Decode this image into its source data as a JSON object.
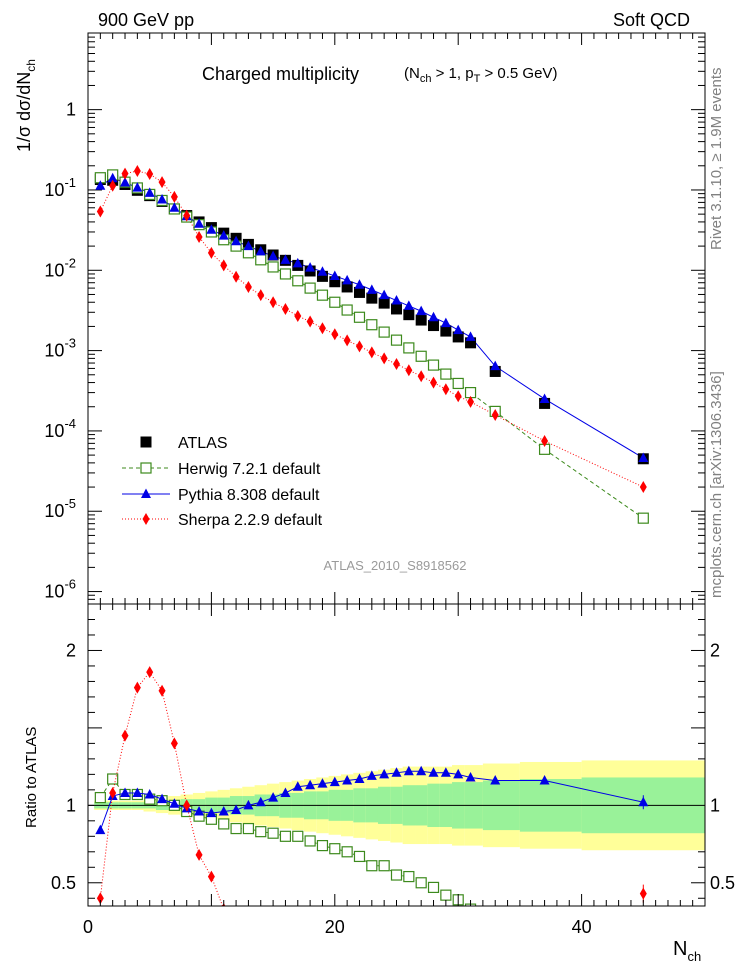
{
  "header": {
    "left": "900 GeV pp",
    "right": "Soft QCD"
  },
  "side_texts": {
    "upper": "Rivet 3.1.10, ≥ 1.9M events",
    "lower": "mcplots.cern.ch [arXiv:1306.3436]"
  },
  "watermark": "ATLAS_2010_S8918562",
  "colors": {
    "atlas": "#000000",
    "herwig": "#3d8a1d",
    "pythia": "#0000e6",
    "sherpa": "#ff0000",
    "band_inner": "#99f299",
    "band_outer": "#ffff99"
  },
  "chart_data": [
    {
      "type": "scatter",
      "title": "Charged multiplicity",
      "title_cuts": {
        "a": "(N",
        "a_sub": "ch",
        "b": " > 1, p",
        "b_sub": "T",
        "c": " > 0.5 GeV)"
      },
      "xlabel": "N",
      "xlabel_sub": "ch",
      "ylabel": "1/σ dσ/dN",
      "ylabel_sub": "ch",
      "log_y": true,
      "xlim": [
        0,
        50
      ],
      "ylim": [
        7e-07,
        9
      ],
      "xticks": [
        "0",
        "20",
        "40"
      ],
      "yticks": [
        {
          "base": "10",
          "exp": "-6"
        },
        {
          "base": "10",
          "exp": "-5"
        },
        {
          "base": "10",
          "exp": "-4"
        },
        {
          "base": "10",
          "exp": "-3"
        },
        {
          "base": "10",
          "exp": "-2"
        },
        {
          "base": "10",
          "exp": "-1"
        },
        {
          "base": "1",
          "exp": ""
        }
      ],
      "legend_position": "lower-left",
      "series": [
        {
          "name": "ATLAS",
          "marker": "square",
          "color": "#000000",
          "x": [
            1,
            2,
            3,
            4,
            5,
            6,
            7,
            8,
            9,
            10,
            11,
            12,
            13,
            14,
            15,
            16,
            17,
            18,
            19,
            20,
            21,
            22,
            23,
            24,
            25,
            26,
            27,
            28,
            29,
            30,
            31,
            33,
            37,
            45
          ],
          "y": [
            0.135,
            0.132,
            0.117,
            0.099,
            0.085,
            0.072,
            0.058,
            0.048,
            0.04,
            0.034,
            0.029,
            0.025,
            0.021,
            0.018,
            0.0155,
            0.0133,
            0.0115,
            0.0098,
            0.0084,
            0.0072,
            0.0062,
            0.0053,
            0.0045,
            0.0039,
            0.0033,
            0.0028,
            0.0024,
            0.00205,
            0.00175,
            0.00148,
            0.00125,
            0.00055,
            0.00022,
            4.5e-05
          ]
        },
        {
          "name": "Herwig 7.2.1 default",
          "marker": "open-square",
          "color": "#3d8a1d",
          "dash": "4,3",
          "x": [
            1,
            2,
            3,
            4,
            5,
            6,
            7,
            8,
            9,
            10,
            11,
            12,
            13,
            14,
            15,
            16,
            17,
            18,
            19,
            20,
            21,
            22,
            23,
            24,
            25,
            26,
            27,
            28,
            29,
            30,
            31,
            33,
            37,
            45
          ],
          "y": [
            0.142,
            0.154,
            0.125,
            0.106,
            0.088,
            0.074,
            0.058,
            0.046,
            0.037,
            0.03,
            0.024,
            0.02,
            0.0165,
            0.0135,
            0.011,
            0.009,
            0.0074,
            0.006,
            0.0049,
            0.004,
            0.0032,
            0.0026,
            0.0021,
            0.0017,
            0.00135,
            0.00108,
            0.00085,
            0.00066,
            0.00051,
            0.00039,
            0.0003,
            0.000175,
            5.9e-05,
            8.2e-06
          ]
        },
        {
          "name": "Pythia 8.308 default",
          "marker": "triangle",
          "color": "#0000e6",
          "dash": "",
          "x": [
            1,
            2,
            3,
            4,
            5,
            6,
            7,
            8,
            9,
            10,
            11,
            12,
            13,
            14,
            15,
            16,
            17,
            18,
            19,
            20,
            21,
            22,
            23,
            24,
            25,
            26,
            27,
            28,
            29,
            30,
            31,
            33,
            37,
            45
          ],
          "y": [
            0.113,
            0.14,
            0.124,
            0.107,
            0.092,
            0.076,
            0.06,
            0.047,
            0.038,
            0.032,
            0.027,
            0.023,
            0.02,
            0.0172,
            0.015,
            0.0135,
            0.0122,
            0.0108,
            0.0096,
            0.0085,
            0.0075,
            0.0066,
            0.0057,
            0.0049,
            0.0042,
            0.0036,
            0.0031,
            0.0026,
            0.0022,
            0.0018,
            0.00148,
            0.00064,
            0.00025,
            4.6e-05
          ]
        },
        {
          "name": "Sherpa 2.2.9 default",
          "marker": "diamond",
          "color": "#ff0000",
          "dash": "1,2",
          "x": [
            1,
            2,
            3,
            4,
            5,
            6,
            7,
            8,
            9,
            10,
            11,
            12,
            13,
            14,
            15,
            16,
            17,
            18,
            19,
            20,
            21,
            22,
            23,
            24,
            25,
            26,
            27,
            28,
            29,
            30,
            31,
            33,
            37,
            45
          ],
          "y": [
            0.054,
            0.113,
            0.16,
            0.172,
            0.158,
            0.125,
            0.082,
            0.048,
            0.026,
            0.0165,
            0.0115,
            0.0083,
            0.0062,
            0.0049,
            0.004,
            0.0033,
            0.0027,
            0.0023,
            0.0019,
            0.0016,
            0.00134,
            0.00113,
            0.00095,
            0.0008,
            0.00068,
            0.00057,
            0.00048,
            0.0004,
            0.00033,
            0.00027,
            0.00023,
            0.000158,
            7.5e-05,
            2e-05
          ]
        }
      ]
    },
    {
      "type": "line",
      "ylabel": "Ratio to ATLAS",
      "xlim": [
        0,
        50
      ],
      "ylim": [
        0.35,
        2.3
      ],
      "yticks": [
        "0.5",
        "1",
        "2"
      ],
      "xticks": [
        "0",
        "20",
        "40"
      ],
      "band": {
        "edges": [
          0.5,
          1.5,
          2.5,
          3.5,
          4.5,
          5.5,
          6.5,
          7.5,
          8.5,
          9.5,
          10.5,
          11.5,
          12.5,
          13.5,
          14.5,
          15.5,
          16.5,
          17.5,
          18.5,
          19.5,
          20.5,
          21.5,
          22.5,
          23.5,
          24.5,
          25.5,
          26.5,
          27.5,
          28.5,
          29.5,
          30.5,
          32,
          35,
          40,
          50
        ],
        "inner": [
          0.02,
          0.02,
          0.02,
          0.02,
          0.02,
          0.03,
          0.03,
          0.04,
          0.04,
          0.05,
          0.05,
          0.06,
          0.06,
          0.07,
          0.07,
          0.08,
          0.08,
          0.09,
          0.09,
          0.1,
          0.1,
          0.11,
          0.11,
          0.12,
          0.12,
          0.13,
          0.13,
          0.14,
          0.14,
          0.15,
          0.15,
          0.16,
          0.17,
          0.18
        ],
        "outer": [
          0.03,
          0.03,
          0.03,
          0.03,
          0.04,
          0.05,
          0.06,
          0.07,
          0.08,
          0.09,
          0.1,
          0.11,
          0.12,
          0.13,
          0.14,
          0.15,
          0.16,
          0.17,
          0.18,
          0.19,
          0.2,
          0.21,
          0.22,
          0.23,
          0.24,
          0.25,
          0.25,
          0.25,
          0.25,
          0.26,
          0.26,
          0.27,
          0.28,
          0.29
        ]
      },
      "series": [
        {
          "name": "Herwig 7.2.1 default",
          "x": [
            1,
            2,
            3,
            4,
            5,
            6,
            7,
            8,
            9,
            10,
            11,
            12,
            13,
            14,
            15,
            16,
            17,
            18,
            19,
            20,
            21,
            22,
            23,
            24,
            25,
            26,
            27,
            28,
            29,
            30,
            31
          ],
          "y": [
            1.05,
            1.17,
            1.07,
            1.07,
            1.04,
            1.03,
            1.0,
            0.96,
            0.93,
            0.91,
            0.88,
            0.85,
            0.85,
            0.83,
            0.82,
            0.8,
            0.8,
            0.77,
            0.74,
            0.72,
            0.7,
            0.67,
            0.61,
            0.61,
            0.55,
            0.54,
            0.5,
            0.47,
            0.42,
            0.39,
            0.33
          ]
        },
        {
          "name": "Pythia 8.308 default",
          "x": [
            1,
            2,
            3,
            4,
            5,
            6,
            7,
            8,
            9,
            10,
            11,
            12,
            13,
            14,
            15,
            16,
            17,
            18,
            19,
            20,
            21,
            22,
            23,
            24,
            25,
            26,
            27,
            28,
            29,
            30,
            31,
            33,
            37,
            45
          ],
          "y": [
            0.84,
            1.06,
            1.08,
            1.08,
            1.07,
            1.04,
            1.01,
            0.98,
            0.96,
            0.95,
            0.96,
            0.97,
            1.0,
            1.02,
            1.05,
            1.08,
            1.12,
            1.13,
            1.14,
            1.15,
            1.16,
            1.17,
            1.19,
            1.2,
            1.21,
            1.22,
            1.22,
            1.21,
            1.21,
            1.2,
            1.18,
            1.16,
            1.16,
            1.02
          ]
        },
        {
          "name": "Sherpa 2.2.9 default",
          "x": [
            1,
            2,
            3,
            4,
            5,
            6,
            7,
            8,
            9,
            10,
            11,
            45
          ],
          "y": [
            0.4,
            1.08,
            1.45,
            1.76,
            1.86,
            1.74,
            1.4,
            1.0,
            0.68,
            0.54,
            0.33,
            0.43
          ]
        }
      ]
    }
  ]
}
